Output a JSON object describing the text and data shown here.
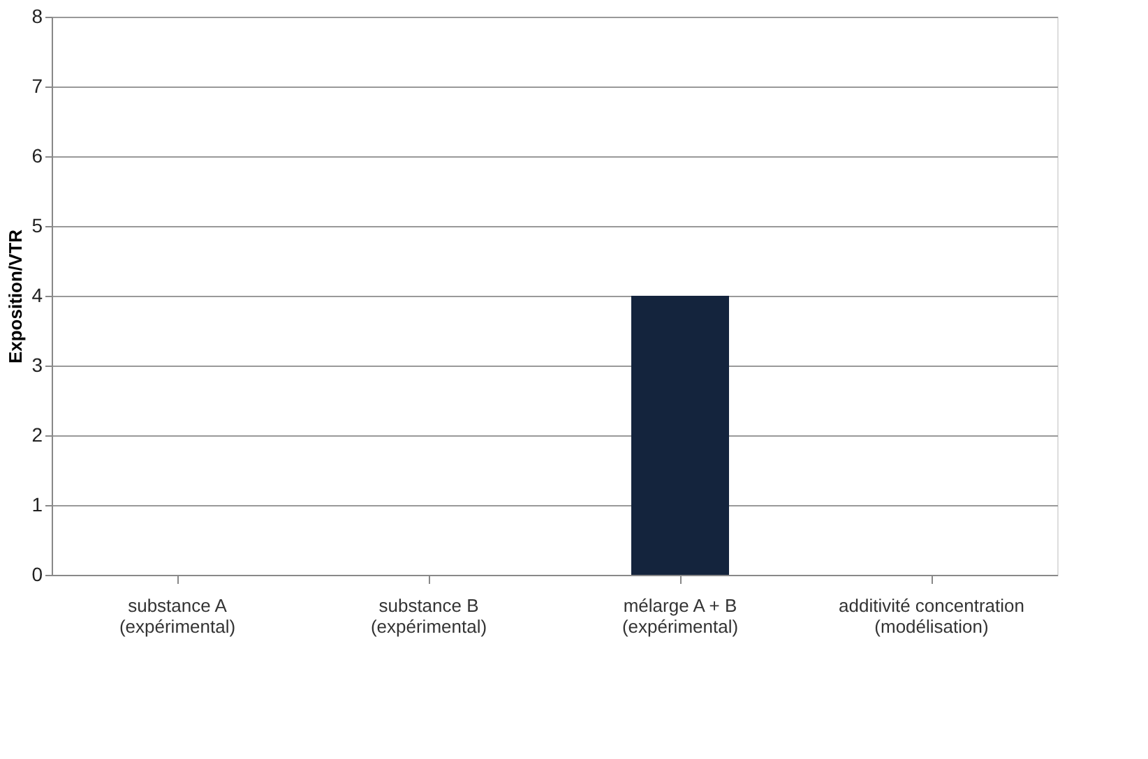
{
  "chart_data": {
    "type": "bar",
    "ylabel": "Exposition/VTR",
    "categories": [
      "substance A (expérimental)",
      "substance B (expérimental)",
      "mélarge A + B (expérimental)",
      "additivité concentration (modélisation)"
    ],
    "values": [
      0,
      0,
      4,
      0
    ],
    "color": "#14243d",
    "ylim": [
      0,
      8
    ],
    "yticks": [
      0,
      1,
      2,
      3,
      4,
      5,
      6,
      7,
      8
    ],
    "grid": "y"
  }
}
